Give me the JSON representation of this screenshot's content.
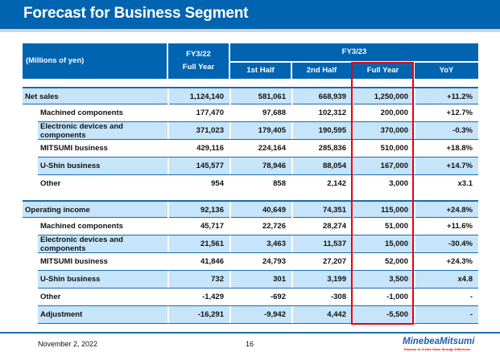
{
  "title": "Forecast for Business Segment",
  "table": {
    "unit_label": "(Millions of yen)",
    "fy22_label": "FY3/22",
    "fy22_sub": "Full Year",
    "fy23_label": "FY3/23",
    "fy23_cols": [
      "1st Half",
      "2nd Half",
      "Full Year",
      "YoY"
    ],
    "rows": [
      {
        "label": "Net sales",
        "values": [
          "1,124,140",
          "581,061",
          "668,939",
          "1,250,000",
          "+11.2%"
        ]
      },
      {
        "label": "Machined components",
        "values": [
          "177,470",
          "97,688",
          "102,312",
          "200,000",
          "+12.7%"
        ]
      },
      {
        "label": "Electronic devices and components",
        "values": [
          "371,023",
          "179,405",
          "190,595",
          "370,000",
          "-0.3%"
        ]
      },
      {
        "label": "MITSUMI business",
        "values": [
          "429,116",
          "224,164",
          "285,836",
          "510,000",
          "+18.8%"
        ]
      },
      {
        "label": "U-Shin business",
        "values": [
          "145,577",
          "78,946",
          "88,054",
          "167,000",
          "+14.7%"
        ]
      },
      {
        "label": "Other",
        "values": [
          "954",
          "858",
          "2,142",
          "3,000",
          "x3.1"
        ]
      },
      {
        "label": "Operating income",
        "values": [
          "92,136",
          "40,649",
          "74,351",
          "115,000",
          "+24.8%"
        ]
      },
      {
        "label": "Machined components",
        "values": [
          "45,717",
          "22,726",
          "28,274",
          "51,000",
          "+11.6%"
        ]
      },
      {
        "label": "Electronic devices and components",
        "values": [
          "21,561",
          "3,463",
          "11,537",
          "15,000",
          "-30.4%"
        ]
      },
      {
        "label": "MITSUMI business",
        "values": [
          "41,846",
          "24,793",
          "27,207",
          "52,000",
          "+24.3%"
        ]
      },
      {
        "label": "U-Shin business",
        "values": [
          "732",
          "301",
          "3,199",
          "3,500",
          "x4.8"
        ]
      },
      {
        "label": "Other",
        "values": [
          "-1,429",
          "-692",
          "-308",
          "-1,000",
          "-"
        ]
      },
      {
        "label": "Adjustment",
        "values": [
          "-16,291",
          "-9,942",
          "4,442",
          "-5,500",
          "-"
        ]
      }
    ]
  },
  "footer": {
    "date": "November 2, 2022",
    "page": "16",
    "logo": "MinebeaMitsumi",
    "tagline": "Passion to Create Value through Difference"
  },
  "colors": {
    "brand_blue": "#0064b0",
    "row_highlight": "#c6e4fa",
    "focus_box": "#e60012"
  }
}
